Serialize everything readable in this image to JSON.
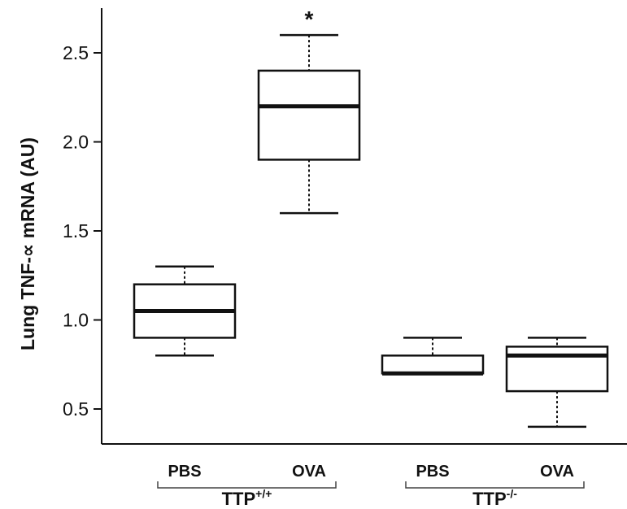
{
  "chart_data": {
    "type": "box",
    "ylabel": "Lung TNF-∝ mRNA (AU)",
    "xlabel": "",
    "ylim": [
      0.3,
      2.65
    ],
    "yticks": [
      0.5,
      1.0,
      1.5,
      2.0,
      2.5
    ],
    "ytick_labels": [
      "0.5",
      "1.0",
      "1.5",
      "2.0",
      "2.5"
    ],
    "grid": false,
    "legend": "none",
    "categories": [
      "PBS",
      "OVA",
      "PBS",
      "OVA"
    ],
    "groups": [
      {
        "base": "TTP",
        "sup": "+/+",
        "members": [
          0,
          1
        ]
      },
      {
        "base": "TTP",
        "sup": "-/-",
        "members": [
          2,
          3
        ]
      }
    ],
    "boxes": [
      {
        "category": "PBS",
        "min": 0.8,
        "q1": 0.9,
        "median": 1.05,
        "q3": 1.2,
        "max": 1.3
      },
      {
        "category": "OVA",
        "min": 1.6,
        "q1": 1.9,
        "median": 2.2,
        "q3": 2.4,
        "max": 2.6,
        "annotation": "*"
      },
      {
        "category": "PBS",
        "min": 0.7,
        "q1": 0.7,
        "median": 0.7,
        "q3": 0.8,
        "max": 0.9
      },
      {
        "category": "OVA",
        "min": 0.4,
        "q1": 0.6,
        "median": 0.8,
        "q3": 0.85,
        "max": 0.9
      }
    ]
  }
}
